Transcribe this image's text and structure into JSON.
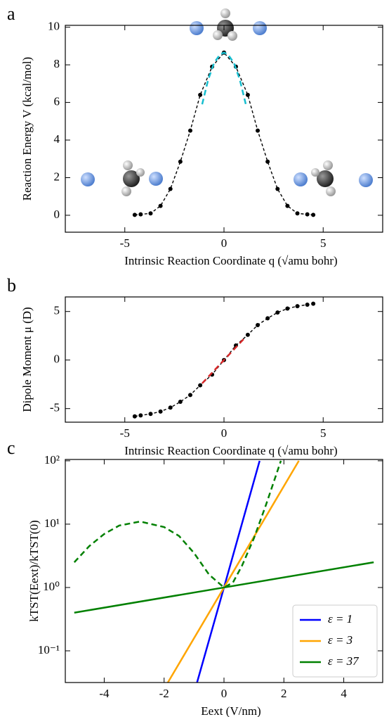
{
  "chart_data": [
    {
      "type": "line",
      "panel_label": "a",
      "x_label": "Intrinsic Reaction Coordinate q (√amu bohr)",
      "y_label": "Reaction Energy V (kcal/mol)",
      "xlim": [
        -8,
        8
      ],
      "ylim": [
        -0.9,
        10.1
      ],
      "xticks": [
        -5,
        0,
        5
      ],
      "yticks": [
        0,
        2,
        4,
        6,
        8,
        10
      ],
      "series": [
        {
          "color": "#000000",
          "dashed": true,
          "markers": true,
          "x": [
            -4.5,
            -4.2,
            -3.7,
            -3.2,
            -2.7,
            -2.2,
            -1.7,
            -1.2,
            -0.6,
            0,
            0.6,
            1.2,
            1.7,
            2.2,
            2.7,
            3.2,
            3.7,
            4.2,
            4.5
          ],
          "values": [
            0.02,
            0.05,
            0.1,
            0.5,
            1.4,
            2.85,
            4.5,
            6.4,
            7.9,
            8.65,
            7.9,
            6.4,
            4.5,
            2.85,
            1.4,
            0.5,
            0.1,
            0.05,
            0.02
          ]
        },
        {
          "color": "#17becf",
          "dashed": true,
          "markers": false,
          "x": [
            -1.1,
            -0.8,
            -0.5,
            -0.2,
            0,
            0.2,
            0.5,
            0.8,
            1.1
          ],
          "values": [
            5.9,
            7.2,
            8.1,
            8.55,
            8.65,
            8.55,
            8.1,
            7.2,
            5.9
          ]
        }
      ]
    },
    {
      "type": "line",
      "panel_label": "b",
      "x_label": "Intrinsic Reaction Coordinate q (√amu bohr)",
      "y_label": "Dipole Moment μ (D)",
      "xlim": [
        -8,
        8
      ],
      "ylim": [
        -6.4,
        6.5
      ],
      "xticks": [
        -5,
        0,
        5
      ],
      "yticks": [
        -5,
        0,
        5
      ],
      "series": [
        {
          "color": "#000000",
          "dashed": true,
          "markers": true,
          "x": [
            -4.5,
            -4.2,
            -3.7,
            -3.2,
            -2.7,
            -2.2,
            -1.7,
            -1.2,
            -0.6,
            0,
            0.6,
            1.2,
            1.7,
            2.2,
            2.7,
            3.2,
            3.7,
            4.2,
            4.5
          ],
          "values": [
            -5.8,
            -5.7,
            -5.55,
            -5.3,
            -4.9,
            -4.3,
            -3.6,
            -2.6,
            -1.5,
            0,
            1.5,
            2.6,
            3.6,
            4.3,
            4.9,
            5.3,
            5.55,
            5.7,
            5.8
          ]
        },
        {
          "color": "#d62728",
          "dashed": true,
          "markers": false,
          "x": [
            -1.1,
            1.1
          ],
          "values": [
            -2.4,
            2.4
          ]
        }
      ]
    },
    {
      "type": "line",
      "panel_label": "c",
      "x_label": "Eext (V/nm)",
      "y_label": "kTST(Eext)/kTST(0)",
      "xlim": [
        -5.3,
        5.3
      ],
      "ylim": [
        0.0316,
        105
      ],
      "ylog": true,
      "xticks": [
        -4,
        -2,
        0,
        2,
        4
      ],
      "yticks": [
        {
          "value": 0.1,
          "label": "10⁻¹"
        },
        {
          "value": 1,
          "label": "10⁰"
        },
        {
          "value": 10,
          "label": "10¹"
        },
        {
          "value": 100,
          "label": "10²"
        }
      ],
      "legend": "lower right",
      "series": [
        {
          "name": "ε = 1",
          "color": "#0000ff",
          "dashed": false,
          "markers": false,
          "x": [
            -0.9,
            0,
            1.19
          ],
          "values": [
            0.0316,
            1,
            100
          ]
        },
        {
          "name": "ε = 3",
          "color": "#ffa500",
          "dashed": false,
          "markers": false,
          "x": [
            -1.875,
            0,
            2.5
          ],
          "values": [
            0.0316,
            1,
            100
          ]
        },
        {
          "name": "ε = 37",
          "color": "#008000",
          "dashed": false,
          "markers": false,
          "x": [
            -5,
            0,
            5
          ],
          "values": [
            0.4,
            1,
            2.5
          ]
        },
        {
          "color": "#008000",
          "dashed": true,
          "markers": false,
          "x": [
            -5,
            -4.5,
            -4,
            -3.5,
            -2.8,
            -2,
            -1.5,
            -1,
            -0.5,
            0,
            0.3,
            0.6,
            1,
            1.4,
            1.9
          ],
          "values": [
            2.5,
            4.5,
            7,
            9.5,
            11,
            9,
            6.5,
            3.5,
            1.6,
            1,
            1.2,
            2.2,
            6,
            20,
            100
          ]
        }
      ]
    }
  ]
}
